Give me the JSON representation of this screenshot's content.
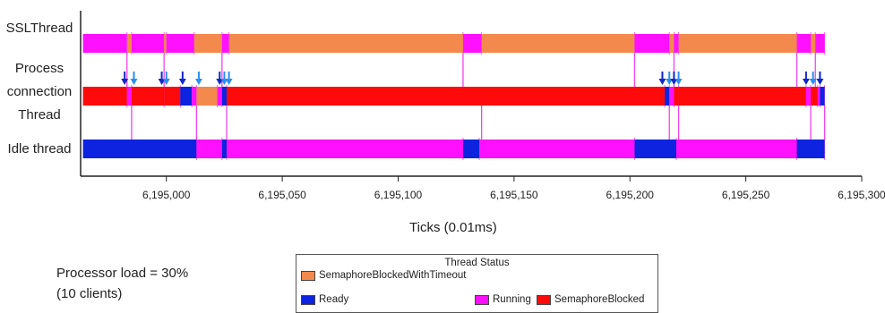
{
  "chart_data": {
    "type": "timeline",
    "xlabel": "Ticks (0.01ms)",
    "xlim": [
      6194963,
      6195300
    ],
    "ticks": [
      {
        "value": 6195000,
        "label": "6,195,000"
      },
      {
        "value": 6195050,
        "label": "6,195,050"
      },
      {
        "value": 6195100,
        "label": "6,195,100"
      },
      {
        "value": 6195150,
        "label": "6,195,150"
      },
      {
        "value": 6195200,
        "label": "6,195,200"
      },
      {
        "value": 6195250,
        "label": "6,195,250"
      },
      {
        "value": 6195300,
        "label": "6,195,300"
      }
    ],
    "lanes": [
      {
        "name": "SSLThread",
        "segments": [
          {
            "start": 6194964,
            "end": 6194983,
            "status": "Running"
          },
          {
            "start": 6194983,
            "end": 6194985,
            "status": "SemaphoreBlockedWithTimeout"
          },
          {
            "start": 6194985,
            "end": 6194999,
            "status": "Running"
          },
          {
            "start": 6194999,
            "end": 6195000,
            "status": "SemaphoreBlockedWithTimeout"
          },
          {
            "start": 6195000,
            "end": 6195012,
            "status": "Running"
          },
          {
            "start": 6195012,
            "end": 6195024,
            "status": "SemaphoreBlockedWithTimeout"
          },
          {
            "start": 6195024,
            "end": 6195027,
            "status": "Running"
          },
          {
            "start": 6195027,
            "end": 6195128,
            "status": "SemaphoreBlockedWithTimeout"
          },
          {
            "start": 6195128,
            "end": 6195136,
            "status": "Running"
          },
          {
            "start": 6195136,
            "end": 6195202,
            "status": "SemaphoreBlockedWithTimeout"
          },
          {
            "start": 6195202,
            "end": 6195217,
            "status": "Running"
          },
          {
            "start": 6195217,
            "end": 6195219,
            "status": "SemaphoreBlockedWithTimeout"
          },
          {
            "start": 6195219,
            "end": 6195221,
            "status": "Running"
          },
          {
            "start": 6195221,
            "end": 6195272,
            "status": "SemaphoreBlockedWithTimeout"
          },
          {
            "start": 6195272,
            "end": 6195278,
            "status": "Running"
          },
          {
            "start": 6195278,
            "end": 6195280,
            "status": "SemaphoreBlockedWithTimeout"
          },
          {
            "start": 6195280,
            "end": 6195284,
            "status": "Running"
          }
        ]
      },
      {
        "name": "Process connection Thread",
        "segments": [
          {
            "start": 6194964,
            "end": 6194983,
            "status": "SemaphoreBlocked"
          },
          {
            "start": 6194983,
            "end": 6194985,
            "status": "Running"
          },
          {
            "start": 6194985,
            "end": 6194999,
            "status": "SemaphoreBlocked"
          },
          {
            "start": 6194999,
            "end": 6195006,
            "status": "SemaphoreBlocked"
          },
          {
            "start": 6195006,
            "end": 6195011,
            "status": "Ready"
          },
          {
            "start": 6195011,
            "end": 6195013,
            "status": "Running"
          },
          {
            "start": 6195013,
            "end": 6195022,
            "status": "SemaphoreBlockedWithTimeout"
          },
          {
            "start": 6195022,
            "end": 6195024,
            "status": "Running"
          },
          {
            "start": 6195024,
            "end": 6195026,
            "status": "Ready"
          },
          {
            "start": 6195026,
            "end": 6195215,
            "status": "SemaphoreBlocked"
          },
          {
            "start": 6195215,
            "end": 6195217,
            "status": "Ready"
          },
          {
            "start": 6195217,
            "end": 6195219,
            "status": "Running"
          },
          {
            "start": 6195219,
            "end": 6195221,
            "status": "SemaphoreBlocked"
          },
          {
            "start": 6195221,
            "end": 6195276,
            "status": "SemaphoreBlocked"
          },
          {
            "start": 6195276,
            "end": 6195278,
            "status": "Running"
          },
          {
            "start": 6195278,
            "end": 6195281,
            "status": "SemaphoreBlocked"
          },
          {
            "start": 6195281,
            "end": 6195282,
            "status": "Running"
          },
          {
            "start": 6195282,
            "end": 6195284,
            "status": "Ready"
          }
        ]
      },
      {
        "name": "Idle thread",
        "segments": [
          {
            "start": 6194964,
            "end": 6195013,
            "status": "Ready"
          },
          {
            "start": 6195013,
            "end": 6195024,
            "status": "Running"
          },
          {
            "start": 6195024,
            "end": 6195026,
            "status": "Ready"
          },
          {
            "start": 6195026,
            "end": 6195128,
            "status": "Running"
          },
          {
            "start": 6195128,
            "end": 6195135,
            "status": "Ready"
          },
          {
            "start": 6195135,
            "end": 6195202,
            "status": "Running"
          },
          {
            "start": 6195202,
            "end": 6195220,
            "status": "Ready"
          },
          {
            "start": 6195220,
            "end": 6195272,
            "status": "Running"
          },
          {
            "start": 6195272,
            "end": 6195284,
            "status": "Ready"
          }
        ]
      }
    ],
    "events": [
      {
        "x": 6194982,
        "color": "#1028c8"
      },
      {
        "x": 6194986,
        "color": "#2a8ff0"
      },
      {
        "x": 6194998,
        "color": "#1028c8"
      },
      {
        "x": 6195000,
        "color": "#2a8ff0"
      },
      {
        "x": 6195007,
        "color": "#1028c8"
      },
      {
        "x": 6195014,
        "color": "#2a8ff0"
      },
      {
        "x": 6195023,
        "color": "#1028c8"
      },
      {
        "x": 6195025,
        "color": "#2a8ff0"
      },
      {
        "x": 6195027,
        "color": "#2a8ff0"
      },
      {
        "x": 6195214,
        "color": "#1028c8"
      },
      {
        "x": 6195217,
        "color": "#2a8ff0"
      },
      {
        "x": 6195219,
        "color": "#1028c8"
      },
      {
        "x": 6195221,
        "color": "#2a8ff0"
      },
      {
        "x": 6195276,
        "color": "#1028c8"
      },
      {
        "x": 6195279,
        "color": "#2a8ff0"
      },
      {
        "x": 6195282,
        "color": "#1028c8"
      }
    ],
    "status_colors": {
      "SemaphoreBlockedWithTimeout": "#f4894d",
      "Ready": "#0d23e0",
      "Running": "#ff10ff",
      "SemaphoreBlocked": "#ff0a0a"
    }
  },
  "lane_labels": {
    "ssl": "SSLThread",
    "process_line1": "Process",
    "process_line2": "connection",
    "process_line3": "Thread",
    "idle": "Idle thread"
  },
  "annotation": {
    "load": "Processor load = 30%",
    "clients": "(10 clients)"
  },
  "legend": {
    "title": "Thread Status",
    "items": [
      {
        "label": "SemaphoreBlockedWithTimeout",
        "color": "#f4894d"
      },
      {
        "label": "Ready",
        "color": "#0d23e0"
      },
      {
        "label": "Running",
        "color": "#ff10ff"
      },
      {
        "label": "SemaphoreBlocked",
        "color": "#ff0a0a"
      }
    ]
  }
}
